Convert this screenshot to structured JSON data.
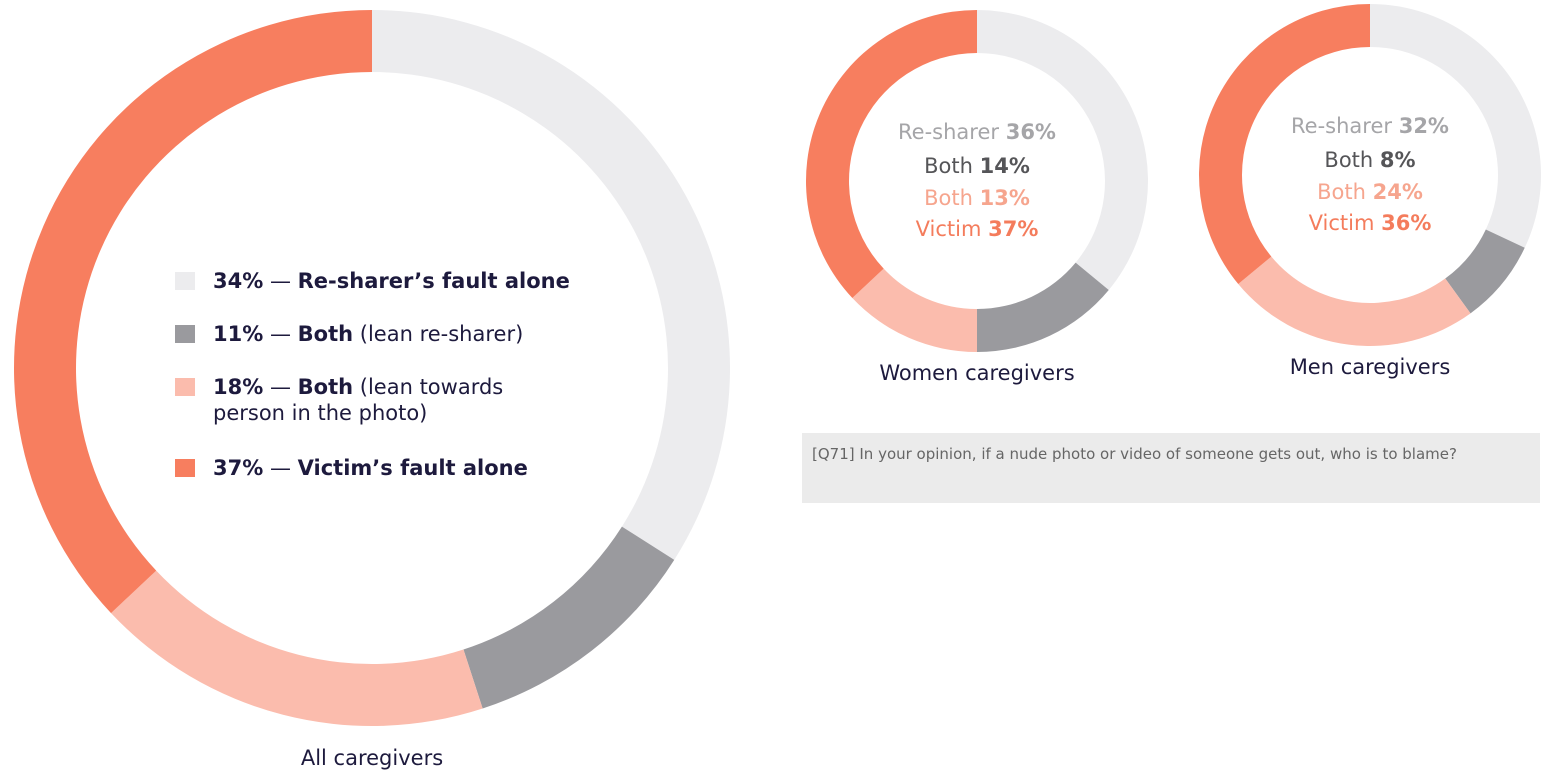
{
  "chart_data": [
    {
      "type": "donut",
      "label": "All caregivers",
      "legend_style": "list",
      "separator": "—",
      "categories": [
        "Re-sharer’s fault alone",
        "Both",
        "Both",
        "Victim’s fault alone"
      ],
      "category_notes": [
        null,
        "(lean re-sharer)",
        "(lean towards person in the photo)",
        null
      ],
      "values": [
        34,
        11,
        18,
        37
      ],
      "value_labels": [
        "34%",
        "11%",
        "18%",
        "37%"
      ],
      "colors": [
        "#ececee",
        "#9a9a9e",
        "#fbbcad",
        "#f77e5f"
      ]
    },
    {
      "type": "donut",
      "label": "Women caregivers",
      "legend_style": "center",
      "categories": [
        "Re-sharer",
        "Both",
        "Both",
        "Victim"
      ],
      "values": [
        36,
        14,
        13,
        37
      ],
      "value_labels": [
        "36%",
        "14%",
        "13%",
        "37%"
      ],
      "colors": [
        "#ececee",
        "#9a9a9e",
        "#fbbcad",
        "#f77e5f"
      ]
    },
    {
      "type": "donut",
      "label": "Men caregivers",
      "legend_style": "center",
      "categories": [
        "Re-sharer",
        "Both",
        "Both",
        "Victim"
      ],
      "values": [
        32,
        8,
        24,
        36
      ],
      "value_labels": [
        "32%",
        "8%",
        "24%",
        "36%"
      ],
      "colors": [
        "#ececee",
        "#9a9a9e",
        "#fbbcad",
        "#f77e5f"
      ]
    }
  ],
  "note": "[Q71] In your opinion, if a nude photo or video of someone gets out, who is to blame?"
}
